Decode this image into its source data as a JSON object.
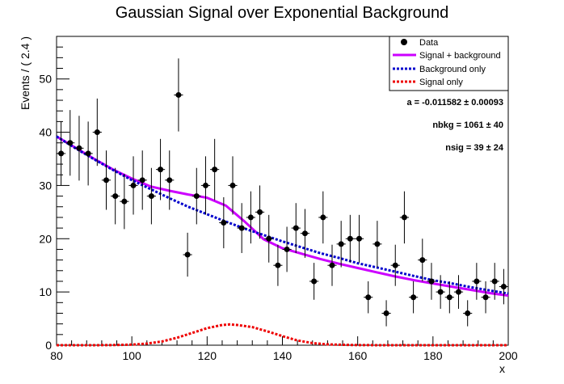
{
  "chart_data": {
    "type": "scatter",
    "title": "Gaussian Signal over Exponential Background",
    "xlabel": "x",
    "ylabel": "Events / ( 2.4 )",
    "xlim": [
      80,
      200
    ],
    "ylim": [
      0,
      58
    ],
    "x_ticks": [
      80,
      100,
      120,
      140,
      160,
      180,
      200
    ],
    "y_ticks": [
      0,
      10,
      20,
      30,
      40,
      50
    ],
    "bin_width": 2.4,
    "series": [
      {
        "name": "Data",
        "style": "points-with-errors",
        "color": "#000000",
        "x": [
          81.2,
          83.6,
          86.0,
          88.4,
          90.8,
          93.2,
          95.6,
          98.0,
          100.4,
          102.8,
          105.2,
          107.6,
          110.0,
          112.4,
          114.8,
          117.2,
          119.6,
          122.0,
          124.4,
          126.8,
          129.2,
          131.6,
          134.0,
          136.4,
          138.8,
          141.2,
          143.6,
          146.0,
          148.4,
          150.8,
          153.2,
          155.6,
          158.0,
          160.4,
          162.8,
          165.2,
          167.6,
          170.0,
          172.4,
          174.8,
          177.2,
          179.6,
          182.0,
          184.4,
          186.8,
          189.2,
          191.6,
          194.0,
          196.4,
          198.8
        ],
        "y": [
          36,
          38,
          37,
          36,
          40,
          31,
          28,
          27,
          30,
          31,
          28,
          33,
          31,
          47,
          17,
          28,
          30,
          33,
          23,
          30,
          22,
          24,
          25,
          20,
          15,
          18,
          22,
          21,
          12,
          24,
          15,
          19,
          20,
          20,
          9,
          19,
          6,
          15,
          24,
          9,
          16,
          12,
          10,
          9,
          10,
          6,
          12,
          9,
          12,
          11
        ]
      },
      {
        "name": "Signal + background",
        "style": "solid",
        "color": "#cc00ff",
        "x": [
          80,
          85,
          90,
          95,
          100,
          105,
          110,
          115,
          120,
          125,
          130,
          135,
          140,
          145,
          150,
          155,
          160,
          165,
          170,
          175,
          180,
          185,
          190,
          195,
          200
        ],
        "y": [
          39.2,
          37.1,
          35.0,
          33.0,
          31.3,
          29.8,
          29.0,
          28.3,
          27.7,
          26.2,
          23.2,
          19.9,
          18.2,
          17.2,
          16.2,
          15.3,
          14.5,
          13.7,
          12.9,
          12.2,
          11.6,
          11.0,
          10.4,
          9.8,
          9.3
        ]
      },
      {
        "name": "Background only",
        "style": "dotted",
        "color": "#0000cc",
        "x": [
          80,
          85,
          90,
          95,
          100,
          105,
          110,
          115,
          120,
          125,
          130,
          135,
          140,
          145,
          150,
          155,
          160,
          165,
          170,
          175,
          180,
          185,
          190,
          195,
          200
        ],
        "y": [
          39.2,
          37.0,
          34.9,
          32.9,
          31.0,
          29.3,
          27.6,
          26.0,
          24.6,
          23.2,
          21.9,
          20.7,
          19.5,
          18.4,
          17.3,
          16.4,
          15.4,
          14.6,
          13.8,
          13.0,
          12.2,
          11.6,
          10.9,
          10.3,
          9.7
        ]
      },
      {
        "name": "Signal only",
        "style": "dotted",
        "color": "#ee0000",
        "x": [
          80,
          90,
          95,
          100,
          104,
          108,
          112,
          116,
          120,
          124,
          126,
          128,
          132,
          136,
          140,
          144,
          148,
          152,
          160,
          170,
          180,
          190,
          200
        ],
        "y": [
          0,
          0,
          0.03,
          0.1,
          0.3,
          0.7,
          1.4,
          2.3,
          3.2,
          3.8,
          3.9,
          3.8,
          3.4,
          2.6,
          1.7,
          0.9,
          0.4,
          0.15,
          0.01,
          0,
          0,
          0,
          0
        ]
      }
    ],
    "legend": {
      "placement": "top-right",
      "entries": [
        "Data",
        "Signal + background",
        "Background only",
        "Signal only"
      ]
    },
    "fit_parameters": [
      "a = -0.011582 ± 0.00093",
      "nbkg =  1061 ± 40",
      "nsig =  39 ± 24"
    ]
  }
}
